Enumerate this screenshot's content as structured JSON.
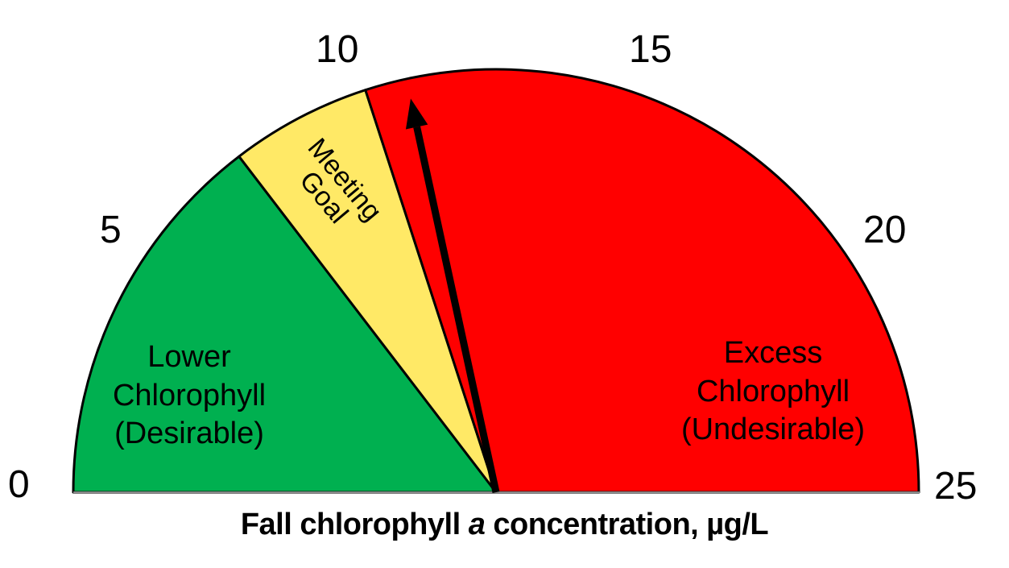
{
  "chart_data": {
    "type": "gauge",
    "title": "",
    "xlabel": "Fall chlorophyll a concentration, µg/L",
    "range": [
      0,
      25
    ],
    "ticks": [
      0,
      5,
      10,
      15,
      20,
      25
    ],
    "tick_labels": [
      "0",
      "5",
      "10",
      "15",
      "20",
      "25"
    ],
    "zones": [
      {
        "name": "Lower Chlorophyll (Desirable)",
        "from": 0,
        "to": 7.3,
        "color": "#00B050"
      },
      {
        "name": "Meeting Goal",
        "from": 7.3,
        "to": 10,
        "color": "#FFE966"
      },
      {
        "name": "Excess Chlorophyll (Undesirable)",
        "from": 10,
        "to": 25,
        "color": "#FF0000"
      }
    ],
    "needle_value": 10.8,
    "needle_color": "#000000"
  },
  "ticks": {
    "t0": "0",
    "t5": "5",
    "t10": "10",
    "t15": "15",
    "t20": "20",
    "t25": "25"
  },
  "labels": {
    "green_line1": "Lower",
    "green_line2": "Chlorophyll",
    "green_line3": "(Desirable)",
    "yellow_line1": "Meeting",
    "yellow_line2": "Goal",
    "red_line1": "Excess",
    "red_line2": "Chlorophyll",
    "red_line3": "(Undesirable)"
  },
  "axis_title": {
    "before": "Fall chlorophyll ",
    "italic": "a",
    "after": " concentration, µg/L"
  },
  "colors": {
    "green": "#00B050",
    "yellow": "#FFE966",
    "red": "#FF0000",
    "outline": "#000000"
  }
}
